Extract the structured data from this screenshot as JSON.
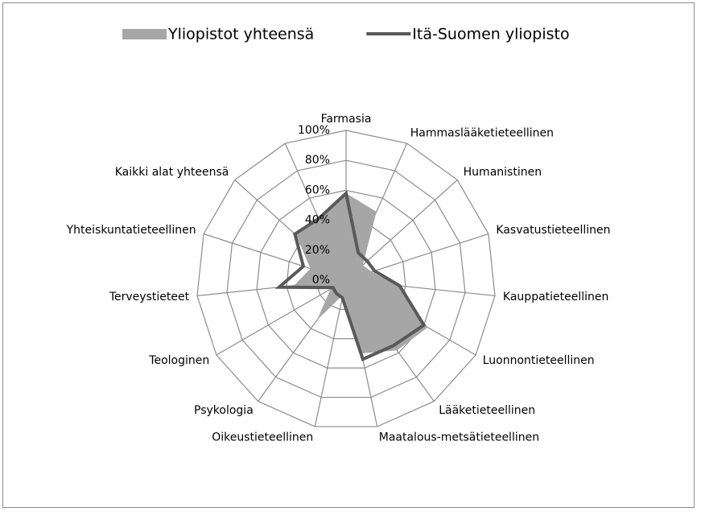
{
  "chart_data": {
    "type": "radar",
    "categories": [
      "Farmasia",
      "Hammaslääketieteellinen",
      "Humanistinen",
      "Kasvatustieteellinen",
      "Kauppatieteellinen",
      "Luonnontieteellinen",
      "Lääketieteellinen",
      "Maatalous-metsätieteellinen",
      "Oikeustieteellinen",
      "Psykologia",
      "Teologinen",
      "Terveystieteet",
      "Yhteiskuntatieteellinen",
      "Kaikki alat yhteensä",
      null
    ],
    "series": [
      {
        "name": "Yliopistot yhteensä",
        "color": "#a6a6a6",
        "fill": true,
        "values": [
          58,
          50,
          15,
          18,
          35,
          63,
          58,
          50,
          10,
          33,
          12,
          35,
          25,
          45,
          45
        ]
      },
      {
        "name": "Itä-Suomen yliopisto",
        "color": "#595959",
        "fill": false,
        "values": [
          58,
          20,
          19,
          20,
          36,
          60,
          54,
          54,
          12,
          11,
          10,
          45,
          30,
          46,
          45
        ]
      }
    ],
    "ylim": [
      0,
      100
    ],
    "yticks": [
      {
        "value": 0,
        "label": "0%"
      },
      {
        "value": 20,
        "label": "20%"
      },
      {
        "value": 40,
        "label": "40%"
      },
      {
        "value": 60,
        "label": "60%"
      },
      {
        "value": 80,
        "label": "80%"
      },
      {
        "value": 100,
        "label": "100%"
      }
    ],
    "grid": true,
    "legend": "top"
  }
}
